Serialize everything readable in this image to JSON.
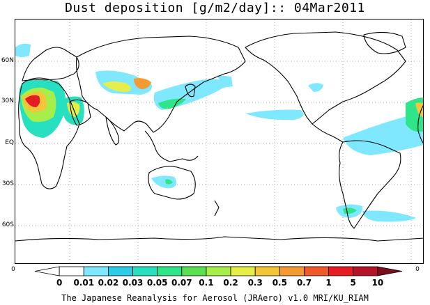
{
  "title": "Dust deposition [g/m2/day]:: 04Mar2011",
  "latitude_labels": [
    "60N",
    "30N",
    "EQ",
    "30S",
    "60S"
  ],
  "colorbar": {
    "end_label_left": "0",
    "end_label_right": "0",
    "levels": [
      "0",
      "0.01",
      "0.02",
      "0.03",
      "0.05",
      "0.07",
      "0.1",
      "0.2",
      "0.3",
      "0.5",
      "0.7",
      "1",
      "5",
      "10"
    ],
    "colors": [
      "#ffffff",
      "#ffffff",
      "#7fe8ff",
      "#2ccce6",
      "#27e0c0",
      "#2fe58a",
      "#5ae052",
      "#a6ee4a",
      "#e6ee48",
      "#f3c63a",
      "#f39a32",
      "#ef5a2a",
      "#e41c24",
      "#b4142a",
      "#7a0e1c"
    ]
  },
  "credit": "The Japanese Reanalysis for Aerosol (JRAero) v1.0 MRI/KU_RIAM"
}
